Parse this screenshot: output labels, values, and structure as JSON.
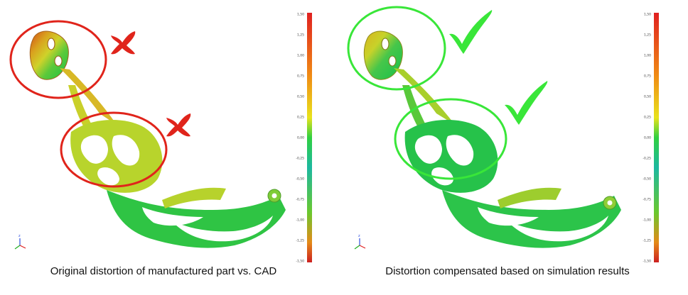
{
  "colors": {
    "red_mark": "#e0241b",
    "green_mark": "#39e639",
    "part_green": "#22c44a",
    "part_yellow": "#d8d62a",
    "part_red": "#d9531c",
    "scale_top": "#e02020",
    "scale_bottom": "#cc2020"
  },
  "scale": {
    "ticks": [
      "1,50",
      "1,25",
      "1,00",
      "0,75",
      "0,50",
      "0,25",
      "0,00",
      "-0,25",
      "-0,50",
      "-0,75",
      "-1,00",
      "-1,25",
      "-1,50"
    ]
  },
  "left": {
    "caption": "Original distortion of manufactured part vs. CAD",
    "marks": [
      "cross-icon",
      "cross-icon"
    ]
  },
  "right": {
    "caption": "Distortion compensated based on simulation results",
    "marks": [
      "check-icon",
      "check-icon"
    ]
  }
}
